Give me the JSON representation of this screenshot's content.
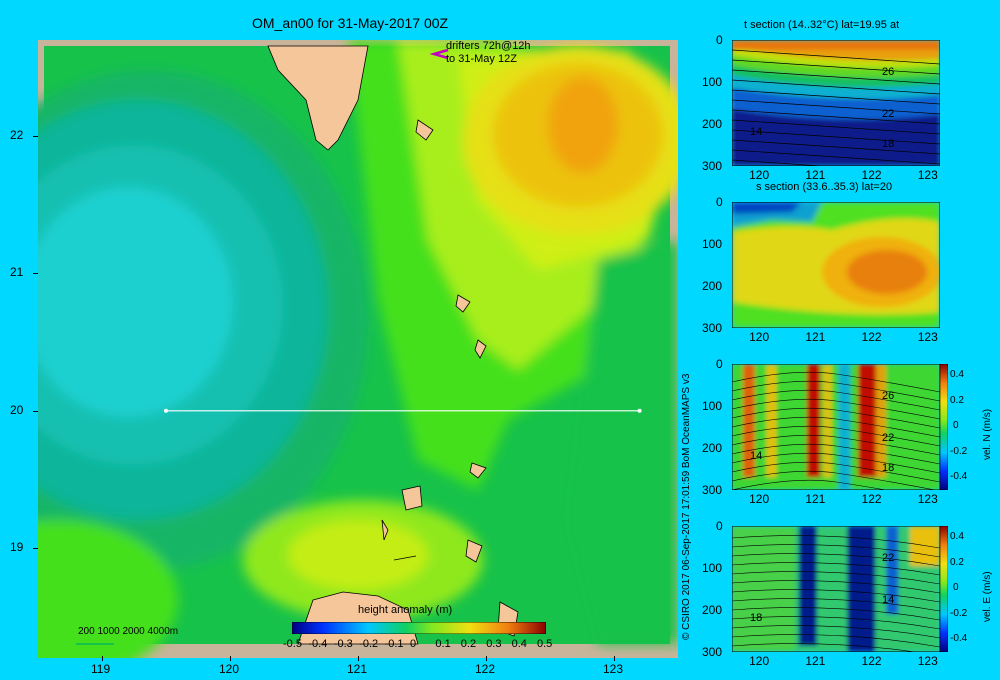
{
  "main": {
    "title": "OM_an00 for 31-May-2017 00Z",
    "drifters_line1": "drifters 72h@12h",
    "drifters_line2": "to 31-May 12Z",
    "x_ticks": [
      "119",
      "120",
      "121",
      "122",
      "123"
    ],
    "y_ticks": [
      "22",
      "21",
      "20",
      "19"
    ],
    "depth_legend": "200  1000  2000  4000m",
    "colorbar_title": "height anomaly (m)",
    "colorbar_ticks": [
      "-0.5",
      "-0.4",
      "-0.3",
      "-0.2",
      "-0.1",
      "0",
      "0.1",
      "0.2",
      "0.3",
      "0.4",
      "0.5"
    ]
  },
  "credit": "© CSIRO 2017   06-Sep-2017 17:01:59 BoM OceanMAPS v3",
  "sections": [
    {
      "title": "t section (14..32°C) lat=19.95 at",
      "contour_labels": [
        "26",
        "22",
        "14",
        "18"
      ],
      "side_label": "",
      "side_ticks": []
    },
    {
      "title": "s section (33.6..35.3) lat=20",
      "contour_labels": [],
      "side_label": "",
      "side_ticks": []
    },
    {
      "title": "",
      "contour_labels": [
        "26",
        "22",
        "14",
        "18"
      ],
      "side_label": "vel. N (m/s)",
      "side_ticks": [
        "0.4",
        "0.2",
        "0",
        "-0.2",
        "-0.4"
      ]
    },
    {
      "title": "",
      "contour_labels": [
        "22",
        "14",
        "18"
      ],
      "side_label": "vel. E (m/s)",
      "side_ticks": [
        "0.4",
        "0.2",
        "0",
        "-0.2",
        "-0.4"
      ]
    }
  ],
  "section_axes": {
    "x_ticks": [
      "120",
      "121",
      "122",
      "123"
    ],
    "y_ticks": [
      "0",
      "100",
      "200",
      "300"
    ]
  },
  "chart_data": [
    {
      "type": "heatmap",
      "title": "OM_an00 for 31-May-2017 00Z",
      "xlabel": "",
      "ylabel": "",
      "xlim": [
        118.5,
        123.5
      ],
      "ylim": [
        18.2,
        22.7
      ],
      "value_label": "height anomaly (m)",
      "color_range": [
        -0.5,
        0.5
      ],
      "section_line": {
        "lat": 20,
        "lon_start": 119.5,
        "lon_end": 123.2
      }
    },
    {
      "type": "heatmap",
      "title": "t section (14..32°C) lat=19.95 at",
      "xlim": [
        119.5,
        123.2
      ],
      "ylim": [
        300,
        0
      ],
      "contours": [
        14,
        18,
        22,
        26
      ]
    },
    {
      "type": "heatmap",
      "title": "s section (33.6..35.3) lat=20",
      "xlim": [
        119.5,
        123.2
      ],
      "ylim": [
        300,
        0
      ]
    },
    {
      "type": "heatmap",
      "title": "",
      "value_label": "vel. N (m/s)",
      "xlim": [
        119.5,
        123.2
      ],
      "ylim": [
        300,
        0
      ],
      "color_range": [
        -0.4,
        0.4
      ]
    },
    {
      "type": "heatmap",
      "title": "",
      "value_label": "vel. E (m/s)",
      "xlim": [
        119.5,
        123.2
      ],
      "ylim": [
        300,
        0
      ],
      "color_range": [
        -0.4,
        0.4
      ]
    }
  ]
}
